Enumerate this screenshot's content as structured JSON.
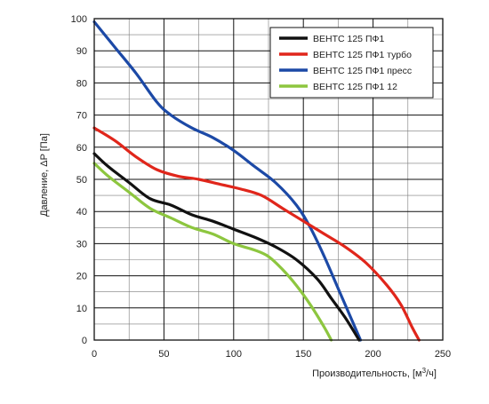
{
  "chart_data": {
    "type": "line",
    "xlabel": "Производительность, [м",
    "xlabel_sup": "3",
    "xlabel_tail": "/ч]",
    "ylabel": "Давление, ΔP [Па]",
    "xlim": [
      0,
      250
    ],
    "ylim": [
      0,
      100
    ],
    "x_major_ticks": [
      0,
      50,
      100,
      150,
      200,
      250
    ],
    "y_major_ticks": [
      0,
      10,
      20,
      30,
      40,
      50,
      60,
      70,
      80,
      90,
      100
    ],
    "x_grid_step": 25,
    "y_grid_step": 5,
    "grid": true,
    "legend_position": "top-right",
    "series": [
      {
        "name": "ВЕНТС 125 ПФ1",
        "color": "#111111",
        "points": [
          [
            0,
            58
          ],
          [
            10,
            54
          ],
          [
            25,
            49
          ],
          [
            40,
            44
          ],
          [
            55,
            42
          ],
          [
            70,
            39
          ],
          [
            85,
            37
          ],
          [
            100,
            34.5
          ],
          [
            115,
            32
          ],
          [
            130,
            29
          ],
          [
            145,
            25
          ],
          [
            160,
            19
          ],
          [
            170,
            13
          ],
          [
            180,
            7
          ],
          [
            190,
            0
          ]
        ]
      },
      {
        "name": "ВЕНТС 125 ПФ1 турбо",
        "color": "#e0261b",
        "points": [
          [
            0,
            66
          ],
          [
            15,
            62
          ],
          [
            30,
            57
          ],
          [
            45,
            53
          ],
          [
            60,
            51
          ],
          [
            75,
            50
          ],
          [
            90,
            48.5
          ],
          [
            105,
            47
          ],
          [
            120,
            45
          ],
          [
            135,
            41
          ],
          [
            150,
            37
          ],
          [
            165,
            33
          ],
          [
            180,
            29
          ],
          [
            195,
            24
          ],
          [
            210,
            17
          ],
          [
            220,
            11
          ],
          [
            228,
            4
          ],
          [
            233,
            0
          ]
        ]
      },
      {
        "name": "ВЕНТС 125 ПФ1 пресс",
        "color": "#1c49a6",
        "points": [
          [
            0,
            99
          ],
          [
            15,
            91
          ],
          [
            30,
            83
          ],
          [
            45,
            74
          ],
          [
            55,
            70
          ],
          [
            70,
            66
          ],
          [
            85,
            63
          ],
          [
            100,
            59
          ],
          [
            115,
            54
          ],
          [
            130,
            49
          ],
          [
            145,
            42
          ],
          [
            155,
            35
          ],
          [
            165,
            26
          ],
          [
            175,
            16
          ],
          [
            185,
            6
          ],
          [
            191,
            0
          ]
        ]
      },
      {
        "name": "ВЕНТС 125 ПФ1 12",
        "color": "#8dc63f",
        "points": [
          [
            0,
            55
          ],
          [
            10,
            51
          ],
          [
            25,
            46
          ],
          [
            40,
            41
          ],
          [
            55,
            38
          ],
          [
            70,
            35
          ],
          [
            85,
            33
          ],
          [
            100,
            30
          ],
          [
            115,
            28
          ],
          [
            125,
            26
          ],
          [
            135,
            22
          ],
          [
            145,
            17
          ],
          [
            155,
            11
          ],
          [
            165,
            4
          ],
          [
            170,
            0
          ]
        ]
      }
    ]
  }
}
